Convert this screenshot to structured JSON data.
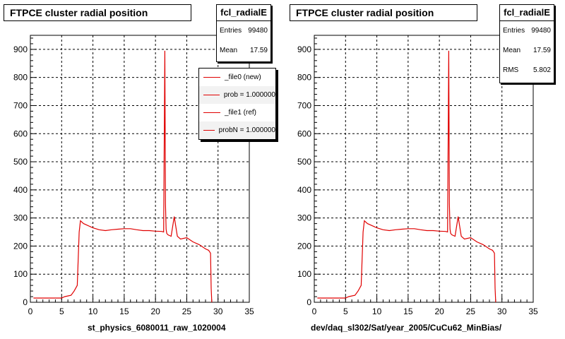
{
  "panels": [
    {
      "title": "FTPCE cluster radial position",
      "stats": {
        "name": "fcl_radialE",
        "rows": [
          {
            "label": "Entries",
            "value": "99480"
          },
          {
            "label": "Mean",
            "value": "17.59"
          }
        ]
      },
      "legend": [
        "_file0 (new)",
        "prob = 1.000000",
        "_file1 (ref)",
        "probN = 1.000000"
      ],
      "xlabel": "st_physics_6080011_raw_1020004"
    },
    {
      "title": "FTPCE cluster radial position",
      "stats": {
        "name": "fcl_radialE",
        "rows": [
          {
            "label": "Entries",
            "value": "99480"
          },
          {
            "label": "Mean",
            "value": "17.59"
          },
          {
            "label": "RMS",
            "value": "5.802"
          }
        ]
      },
      "xlabel": "dev/daq_sl302/Sat/year_2005/CuCu62_MinBias/"
    }
  ],
  "colors": {
    "line": "#e00000",
    "grid": "#000000"
  },
  "chart_data": [
    {
      "type": "line",
      "xlim": [
        0,
        35
      ],
      "ylim": [
        0,
        950
      ],
      "xticks": [
        0,
        5,
        10,
        15,
        20,
        25,
        30,
        35
      ],
      "yticks": [
        0,
        100,
        200,
        300,
        400,
        500,
        600,
        700,
        800,
        900
      ],
      "grid": true,
      "series": [
        {
          "x": [
            0.5,
            5.0,
            5.5,
            6.5,
            7.0,
            7.5,
            7.8,
            8.0,
            8.5,
            9.0,
            10.0,
            11.0,
            12.0,
            13.0,
            14.0,
            15.0,
            16.0,
            17.0,
            18.0,
            19.0,
            20.0,
            21.0,
            21.3,
            21.5,
            21.6,
            21.7,
            21.8,
            22.0,
            22.5,
            23.0,
            23.5,
            24.0,
            25.0,
            26.0,
            27.0,
            28.0,
            28.5,
            28.8,
            28.9,
            29.0
          ],
          "y": [
            15,
            15,
            20,
            25,
            40,
            60,
            250,
            290,
            280,
            275,
            265,
            258,
            255,
            258,
            260,
            262,
            262,
            258,
            255,
            255,
            253,
            252,
            250,
            895,
            350,
            260,
            245,
            240,
            235,
            305,
            235,
            225,
            230,
            215,
            205,
            190,
            185,
            175,
            50,
            0
          ]
        }
      ]
    },
    {
      "type": "line",
      "xlim": [
        0,
        35
      ],
      "ylim": [
        0,
        950
      ],
      "xticks": [
        0,
        5,
        10,
        15,
        20,
        25,
        30,
        35
      ],
      "yticks": [
        0,
        100,
        200,
        300,
        400,
        500,
        600,
        700,
        800,
        900
      ],
      "grid": true,
      "series": [
        {
          "x": [
            0.5,
            5.0,
            5.5,
            6.5,
            7.0,
            7.5,
            7.8,
            8.0,
            8.5,
            9.0,
            10.0,
            11.0,
            12.0,
            13.0,
            14.0,
            15.0,
            16.0,
            17.0,
            18.0,
            19.0,
            20.0,
            21.0,
            21.3,
            21.5,
            21.6,
            21.7,
            21.8,
            22.0,
            22.5,
            23.0,
            23.5,
            24.0,
            25.0,
            26.0,
            27.0,
            28.0,
            28.5,
            28.8,
            28.9,
            29.0
          ],
          "y": [
            15,
            15,
            20,
            25,
            40,
            60,
            250,
            290,
            280,
            275,
            265,
            258,
            255,
            258,
            260,
            262,
            262,
            258,
            255,
            255,
            253,
            252,
            250,
            895,
            350,
            260,
            245,
            240,
            235,
            305,
            235,
            225,
            230,
            215,
            205,
            190,
            185,
            175,
            50,
            0
          ]
        }
      ]
    }
  ]
}
